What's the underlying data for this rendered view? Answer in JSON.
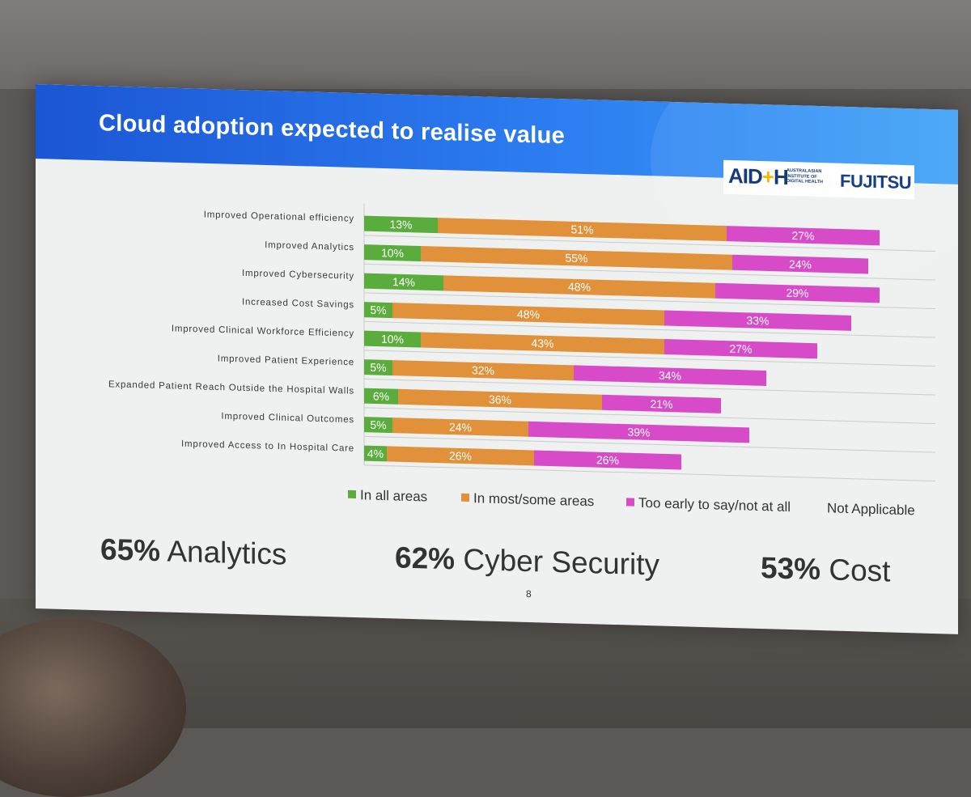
{
  "slide": {
    "title": "Cloud adoption expected to realise value",
    "page_number": "8",
    "logos": {
      "aidh_mark": "AIDH",
      "aidh_text": "AUSTRALASIAN INSTITUTE OF DIGITAL HEALTH",
      "fujitsu": "FUJITSU"
    }
  },
  "colors": {
    "title_bar": "#1b56d4",
    "green": "#5aac3c",
    "orange": "#e0913a",
    "magenta": "#d74bc9"
  },
  "legend": {
    "items": [
      {
        "label": "In all areas",
        "color": "#5aac3c"
      },
      {
        "label": "In most/some areas",
        "color": "#e0913a"
      },
      {
        "label": "Too early to say/not at all",
        "color": "#d74bc9"
      },
      {
        "label": "Not Applicable",
        "color": ""
      }
    ]
  },
  "stats": [
    {
      "value": "65%",
      "label": "Analytics"
    },
    {
      "value": "62%",
      "label": "Cyber Security"
    },
    {
      "value": "53%",
      "label": "Cost"
    }
  ],
  "chart_data": {
    "type": "bar",
    "orientation": "horizontal",
    "stacked": true,
    "categories": [
      "Improved Operational efficiency",
      "Improved Analytics",
      "Improved Cybersecurity",
      "Increased Cost Savings",
      "Improved Clinical Workforce Efficiency",
      "Improved Patient Experience",
      "Expanded Patient Reach Outside the Hospital Walls",
      "Improved Clinical Outcomes",
      "Improved Access to In Hospital Care"
    ],
    "series": [
      {
        "name": "In all areas",
        "values": [
          13,
          10,
          14,
          5,
          10,
          5,
          6,
          5,
          4
        ],
        "labels": [
          "13%",
          "10%",
          "14%",
          "5%",
          "10%",
          "5%",
          "6%",
          "5%",
          "4%"
        ]
      },
      {
        "name": "In most/some areas",
        "values": [
          51,
          55,
          48,
          48,
          43,
          32,
          36,
          24,
          26
        ],
        "labels": [
          "51%",
          "55%",
          "48%",
          "48%",
          "43%",
          "32%",
          "36%",
          "24%",
          "26%"
        ]
      },
      {
        "name": "Too early to say/not at all",
        "values": [
          27,
          24,
          29,
          33,
          27,
          34,
          21,
          39,
          26
        ],
        "labels": [
          "27%",
          "24%",
          "29%",
          "33%",
          "27%",
          "34%",
          "21%",
          "39%",
          "26%"
        ]
      }
    ],
    "xlim": [
      0,
      100
    ],
    "grid": true,
    "legend_position": "bottom"
  }
}
